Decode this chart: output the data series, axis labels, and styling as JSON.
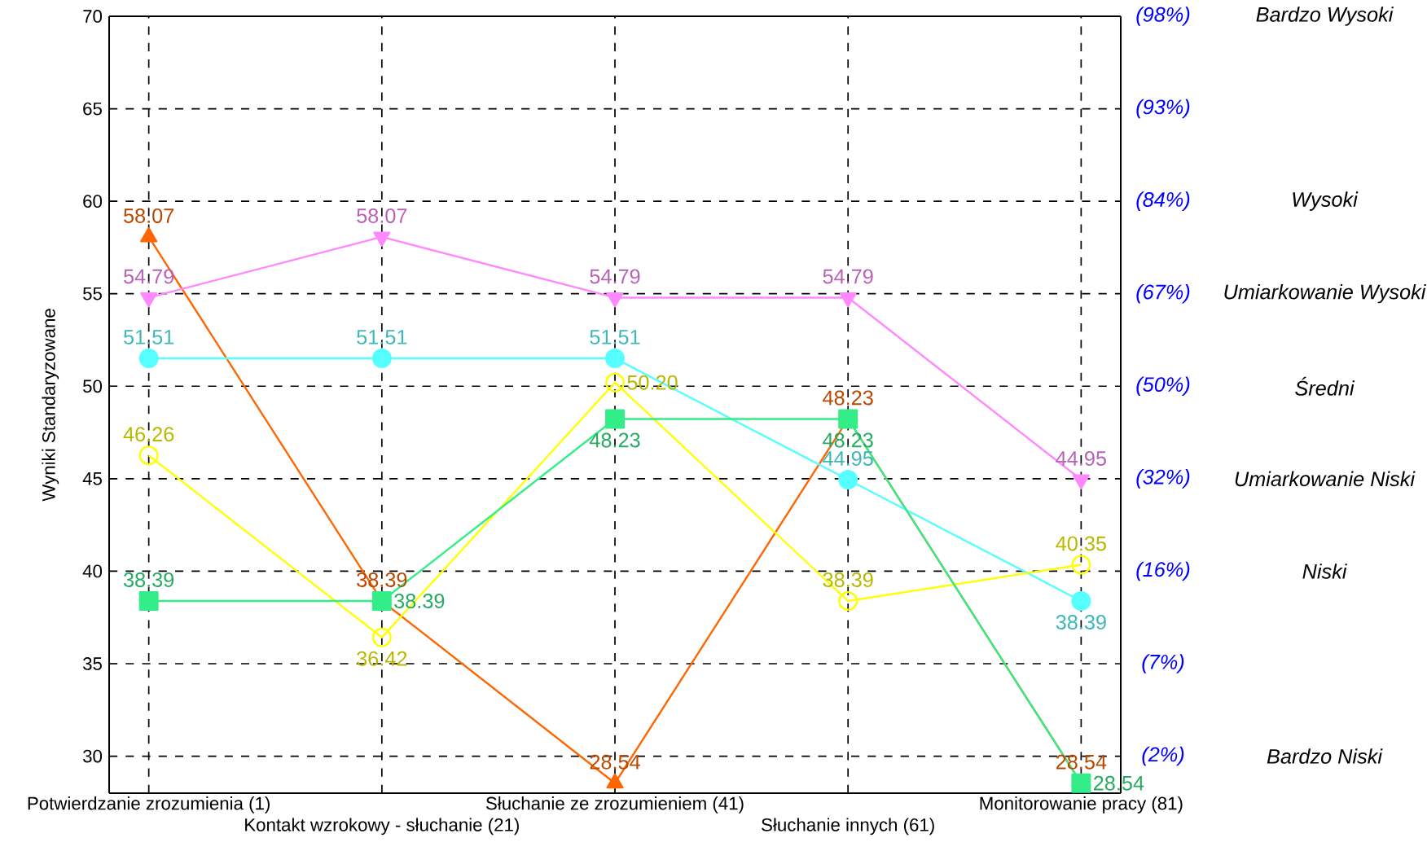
{
  "chart_data": {
    "type": "line",
    "ylabel": "Wyniki Standaryzowane",
    "categories": [
      "Potwierdzanie zrozumienia (1)",
      "Kontakt wzrokowy - słuchanie (21)",
      "Słuchanie ze zrozumieniem (41)",
      "Słuchanie innych (61)",
      "Monitorowanie pracy (81)"
    ],
    "series": [
      {
        "color": "#ff6600",
        "marker": "triangle",
        "values": [
          58.07,
          38.39,
          28.54,
          48.23,
          28.54
        ],
        "value_labels": [
          "58.07",
          "38.39",
          "28.54",
          "48.23",
          "28.54"
        ]
      },
      {
        "color": "#ff88ff",
        "marker": "triangle down",
        "values": [
          54.79,
          58.07,
          54.79,
          54.79,
          44.95
        ],
        "value_labels": [
          "54.79",
          "58.07",
          "54.79",
          "54.79",
          "44.95"
        ]
      },
      {
        "color": "#55ffff",
        "marker": "circle",
        "values": [
          51.51,
          51.51,
          51.51,
          44.95,
          38.39
        ],
        "value_labels": [
          "51.51",
          "51.51",
          "51.51",
          "44.95",
          "38.39"
        ]
      },
      {
        "color": "#ffff00",
        "marker": "open circle",
        "values": [
          46.26,
          36.42,
          50.2,
          38.39,
          40.35
        ],
        "value_labels": [
          "46.26",
          "36.42",
          "50.20",
          "38.39",
          "40.35"
        ]
      },
      {
        "color": "#33ee88",
        "marker": "square",
        "values": [
          38.39,
          38.39,
          48.23,
          48.23,
          28.54
        ],
        "value_labels": [
          "38.39",
          "38.39",
          "48.23",
          "48.23",
          "28.54"
        ]
      }
    ],
    "ylim": [
      28,
      70
    ],
    "yticks": [
      30,
      35,
      40,
      45,
      50,
      55,
      60,
      65,
      70
    ],
    "annotations": [
      "(98%)",
      "(93%)",
      "(84%)",
      "(67%)",
      "(50%)",
      "(32%)",
      "(16%)",
      "(7%)",
      "(2%)",
      "Bardzo Wysoki",
      "Wysoki",
      "Umiarkowanie Wysoki",
      "Średni",
      "Umiarkowanie Niski",
      "Niski",
      "Bardzo Niski"
    ],
    "grid": true,
    "line_style": "solid"
  }
}
